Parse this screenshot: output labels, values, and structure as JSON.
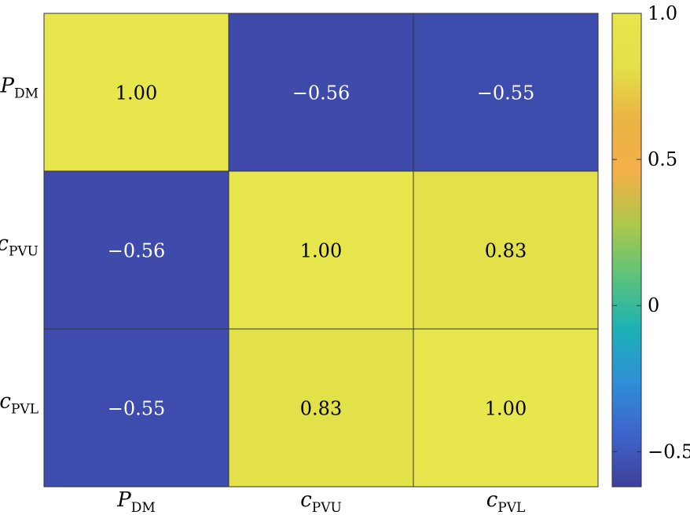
{
  "chart_data": {
    "type": "heatmap",
    "rows": [
      {
        "main": "P",
        "sub": "DM"
      },
      {
        "main": "c",
        "sub": "PVU"
      },
      {
        "main": "c",
        "sub": "PVL"
      }
    ],
    "cols": [
      {
        "main": "P",
        "sub": "DM"
      },
      {
        "main": "c",
        "sub": "PVU"
      },
      {
        "main": "c",
        "sub": "PVL"
      }
    ],
    "values": [
      [
        1.0,
        -0.56,
        -0.55
      ],
      [
        -0.56,
        1.0,
        0.83
      ],
      [
        -0.55,
        0.83,
        1.0
      ]
    ],
    "cell_labels": [
      [
        "1.00",
        "−0.56",
        "−0.55"
      ],
      [
        "−0.56",
        "1.00",
        "0.83"
      ],
      [
        "−0.55",
        "0.83",
        "1.00"
      ]
    ],
    "colorbar": {
      "min": -0.62,
      "max": 1.0,
      "ticks": [
        {
          "value": 1.0,
          "label": "1.0"
        },
        {
          "value": 0.5,
          "label": "0.5"
        },
        {
          "value": 0,
          "label": "0"
        },
        {
          "value": -0.5,
          "label": "−0.5"
        }
      ]
    },
    "colormap": [
      "#3f3f9a",
      "#3d64cc",
      "#2f8fd8",
      "#1db1b5",
      "#5cc37a",
      "#aec84a",
      "#f4b04a",
      "#ebb444",
      "#e3e14a",
      "#e7e64c"
    ]
  }
}
